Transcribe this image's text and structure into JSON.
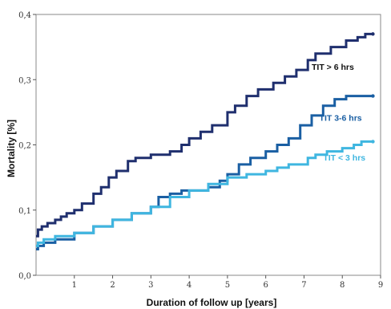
{
  "chart_data": {
    "type": "line",
    "title": "",
    "xlabel": "Duration of follow up [years]",
    "ylabel": "Mortality [%]",
    "xlim": [
      0,
      9
    ],
    "ylim": [
      0,
      0.4
    ],
    "x_ticks": [
      "1",
      "2",
      "3",
      "4",
      "5",
      "6",
      "7",
      "8",
      "9"
    ],
    "y_ticks": [
      "0,0",
      "0,1",
      "0,2",
      "0,3",
      "0,4"
    ],
    "grid": false,
    "legend": "inline labels at right",
    "series": [
      {
        "name": "TIT > 6 hrs",
        "color": "#1f2f6e",
        "x": [
          0,
          0.05,
          0.15,
          0.3,
          0.5,
          0.65,
          0.8,
          1.0,
          1.2,
          1.5,
          1.7,
          1.9,
          2.1,
          2.4,
          2.6,
          3.0,
          3.5,
          3.8,
          4.0,
          4.3,
          4.6,
          5.0,
          5.2,
          5.5,
          5.8,
          6.2,
          6.5,
          6.8,
          7.1,
          7.3,
          7.7,
          8.1,
          8.4,
          8.6,
          8.8
        ],
        "y": [
          0.06,
          0.07,
          0.075,
          0.08,
          0.085,
          0.09,
          0.095,
          0.1,
          0.11,
          0.125,
          0.135,
          0.15,
          0.16,
          0.175,
          0.18,
          0.185,
          0.19,
          0.2,
          0.21,
          0.22,
          0.23,
          0.25,
          0.26,
          0.275,
          0.285,
          0.295,
          0.305,
          0.315,
          0.33,
          0.34,
          0.35,
          0.36,
          0.365,
          0.37,
          0.37
        ]
      },
      {
        "name": "TIT 3-6 hrs",
        "color": "#1a5fa3",
        "x": [
          0,
          0.05,
          0.2,
          0.5,
          1.0,
          1.5,
          2.0,
          2.5,
          3.0,
          3.2,
          3.5,
          3.8,
          4.0,
          4.5,
          4.8,
          5.0,
          5.3,
          5.6,
          6.0,
          6.3,
          6.6,
          6.9,
          7.2,
          7.5,
          7.8,
          8.1,
          8.4,
          8.8
        ],
        "y": [
          0.04,
          0.045,
          0.05,
          0.055,
          0.065,
          0.075,
          0.085,
          0.095,
          0.105,
          0.12,
          0.125,
          0.13,
          0.13,
          0.135,
          0.145,
          0.155,
          0.17,
          0.18,
          0.19,
          0.2,
          0.21,
          0.23,
          0.245,
          0.26,
          0.27,
          0.275,
          0.275,
          0.275
        ]
      },
      {
        "name": "TIT < 3 hrs",
        "color": "#3fb6e0",
        "x": [
          0,
          0.05,
          0.2,
          0.5,
          1.0,
          1.5,
          2.0,
          2.5,
          3.0,
          3.5,
          4.0,
          4.5,
          5.0,
          5.5,
          5.8,
          6.0,
          6.3,
          6.6,
          6.9,
          7.1,
          7.3,
          7.6,
          8.0,
          8.3,
          8.5,
          8.8
        ],
        "y": [
          0.045,
          0.05,
          0.055,
          0.06,
          0.065,
          0.075,
          0.085,
          0.095,
          0.105,
          0.12,
          0.13,
          0.14,
          0.15,
          0.155,
          0.155,
          0.16,
          0.165,
          0.17,
          0.17,
          0.18,
          0.185,
          0.19,
          0.195,
          0.2,
          0.205,
          0.205
        ]
      }
    ]
  }
}
